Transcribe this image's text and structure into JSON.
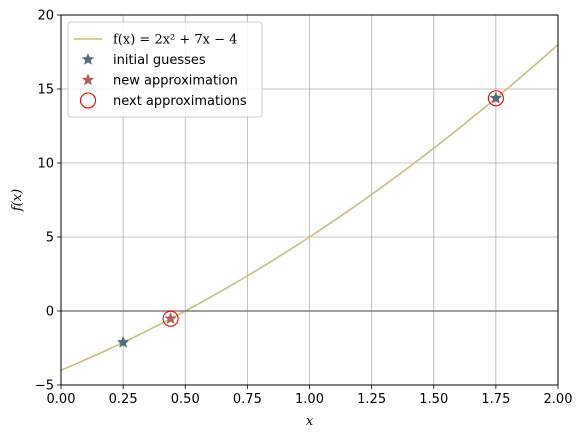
{
  "chart_data": {
    "type": "line",
    "xlabel": "x",
    "ylabel": "f(x)",
    "xlim": [
      0.0,
      2.0
    ],
    "ylim": [
      -5,
      20
    ],
    "x_ticks": [
      "0.00",
      "0.25",
      "0.50",
      "0.75",
      "1.00",
      "1.25",
      "1.50",
      "1.75",
      "2.00"
    ],
    "y_ticks": [
      "−5",
      "0",
      "5",
      "10",
      "15",
      "20"
    ],
    "grid": true,
    "legend_position": "top-left",
    "function": {
      "a": 2,
      "b": 7,
      "c": -4
    },
    "series": [
      {
        "name": "f(x) = 2x² + 7x − 4",
        "kind": "line",
        "color": "#c9be7e"
      },
      {
        "name": "initial guesses",
        "kind": "scatter",
        "marker": "star",
        "color": "#4f6d7a",
        "points": [
          {
            "x": 0.25,
            "y": -2.125
          },
          {
            "x": 1.75,
            "y": 14.375
          }
        ]
      },
      {
        "name": "new approximation",
        "kind": "scatter",
        "marker": "star",
        "color": "#b5605c",
        "points": [
          {
            "x": 0.441,
            "y": -0.52
          }
        ]
      },
      {
        "name": "next approximations",
        "kind": "scatter",
        "marker": "open-circle",
        "color": "#ff0000",
        "points": [
          {
            "x": 0.441,
            "y": -0.52
          },
          {
            "x": 1.75,
            "y": 14.375
          }
        ]
      }
    ],
    "hline": {
      "y": 0,
      "color": "#808080"
    }
  }
}
